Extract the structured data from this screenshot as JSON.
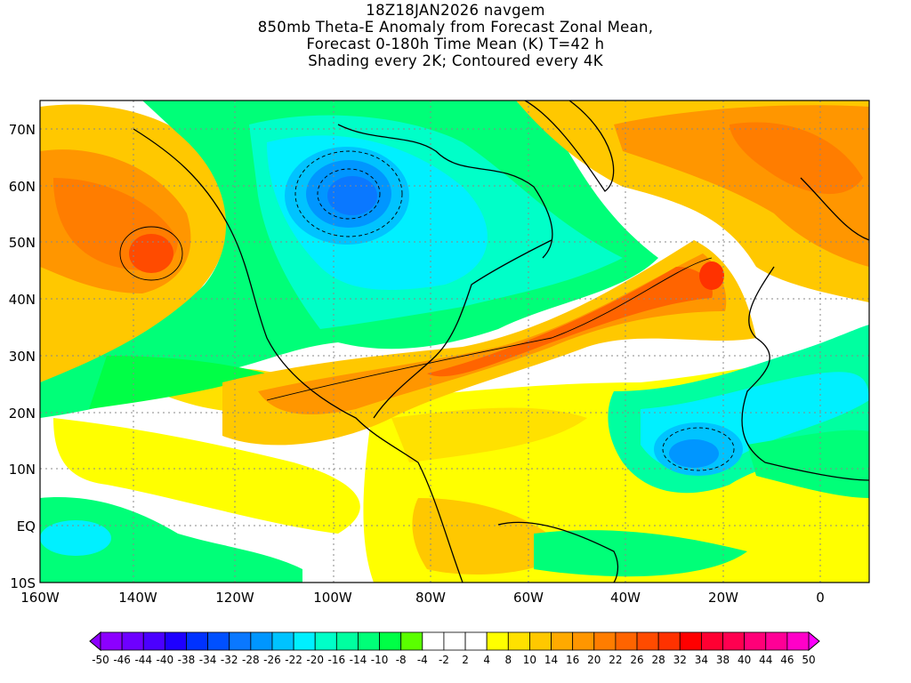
{
  "title": {
    "line1": "18Z18JAN2026 navgem",
    "line2": "850mb Theta-E Anomaly from Forecast Zonal Mean,",
    "line3": "Forecast 0-180h Time Mean (K) T=42 h",
    "line4": "Shading every 2K; Contoured every 4K"
  },
  "axes": {
    "lat_labels": [
      "70N",
      "60N",
      "50N",
      "40N",
      "30N",
      "20N",
      "10N",
      "EQ",
      "10S"
    ],
    "lon_labels": [
      "160W",
      "140W",
      "120W",
      "100W",
      "80W",
      "60W",
      "40W",
      "20W",
      "0"
    ]
  },
  "colorbar": {
    "labels": [
      "-50",
      "-46",
      "-44",
      "-40",
      "-38",
      "-34",
      "-32",
      "-28",
      "-26",
      "-22",
      "-20",
      "-16",
      "-14",
      "-10",
      "-8",
      "-4",
      "-2",
      "2",
      "4",
      "8",
      "10",
      "14",
      "16",
      "20",
      "22",
      "26",
      "28",
      "32",
      "34",
      "38",
      "40",
      "44",
      "46",
      "50"
    ],
    "colors": [
      "#8c00ff",
      "#6e00ff",
      "#4b00ff",
      "#1e00ff",
      "#0032ff",
      "#0050ff",
      "#0a78ff",
      "#0096ff",
      "#00c3ff",
      "#00f0ff",
      "#00ffc8",
      "#00ffa0",
      "#00ff78",
      "#00ff46",
      "#5aff00",
      "#ffffff",
      "#ffffff",
      "#ffffff",
      "#ffff00",
      "#ffe100",
      "#ffc800",
      "#ffaa00",
      "#ff9600",
      "#ff7d00",
      "#ff6400",
      "#ff4b00",
      "#ff3200",
      "#ff0000",
      "#ff0032",
      "#ff0050",
      "#ff0078",
      "#ff0096",
      "#ff00c8",
      "#ff00f0"
    ],
    "under_color": "#8c00ff",
    "over_color": "#ff00ff"
  }
}
